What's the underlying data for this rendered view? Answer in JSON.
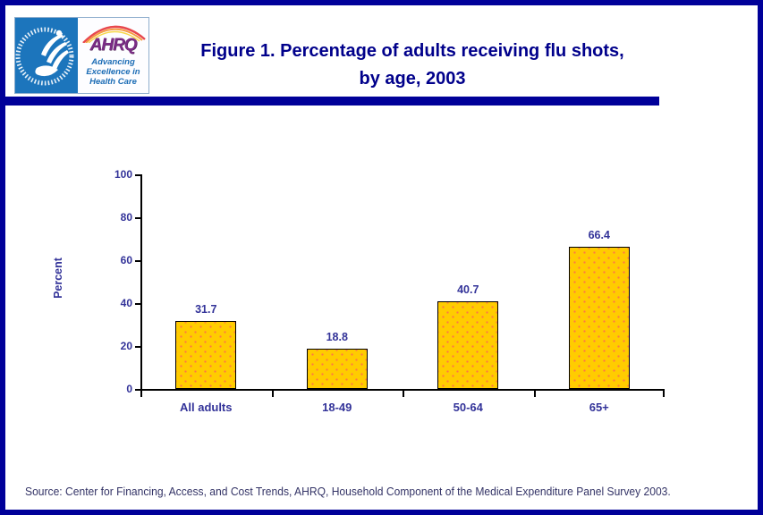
{
  "header": {
    "logo": {
      "hhs_emblem": "US Department of Health and Human Services seal",
      "ahrq_name": "AHRQ",
      "tagline": [
        "Advancing",
        "Excellence in",
        "Health Care"
      ]
    },
    "title_line1": "Figure 1. Percentage of adults receiving flu shots,",
    "title_line2": "by age, 2003"
  },
  "chart_data": {
    "type": "bar",
    "title": "Figure 1. Percentage of adults receiving flu shots, by age, 2003",
    "categories": [
      "All adults",
      "18-49",
      "50-64",
      "65+"
    ],
    "values": [
      31.7,
      18.8,
      40.7,
      66.4
    ],
    "xlabel": "",
    "ylabel": "Percent",
    "ylim": [
      0,
      100
    ],
    "yticks": [
      0,
      20,
      40,
      60,
      80,
      100
    ],
    "grid": false,
    "legend": false,
    "bar_fill_color": "#FFCC00",
    "bar_dot_color": "#FF7744",
    "bar_border_color": "#000000",
    "label_color": "#333399"
  },
  "footer": {
    "source": "Source: Center for Financing, Access, and Cost Trends, AHRQ, Household Component of the Medical Expenditure Panel Survey 2003."
  },
  "colors": {
    "page_border": "#000099",
    "title_text": "#00008B",
    "title_rule": "#000099",
    "hhs_blue": "#1C75BC",
    "ahrq_purple": "#7B2D85",
    "tagline_blue": "#1B6CB5",
    "source_text": "#333366"
  }
}
